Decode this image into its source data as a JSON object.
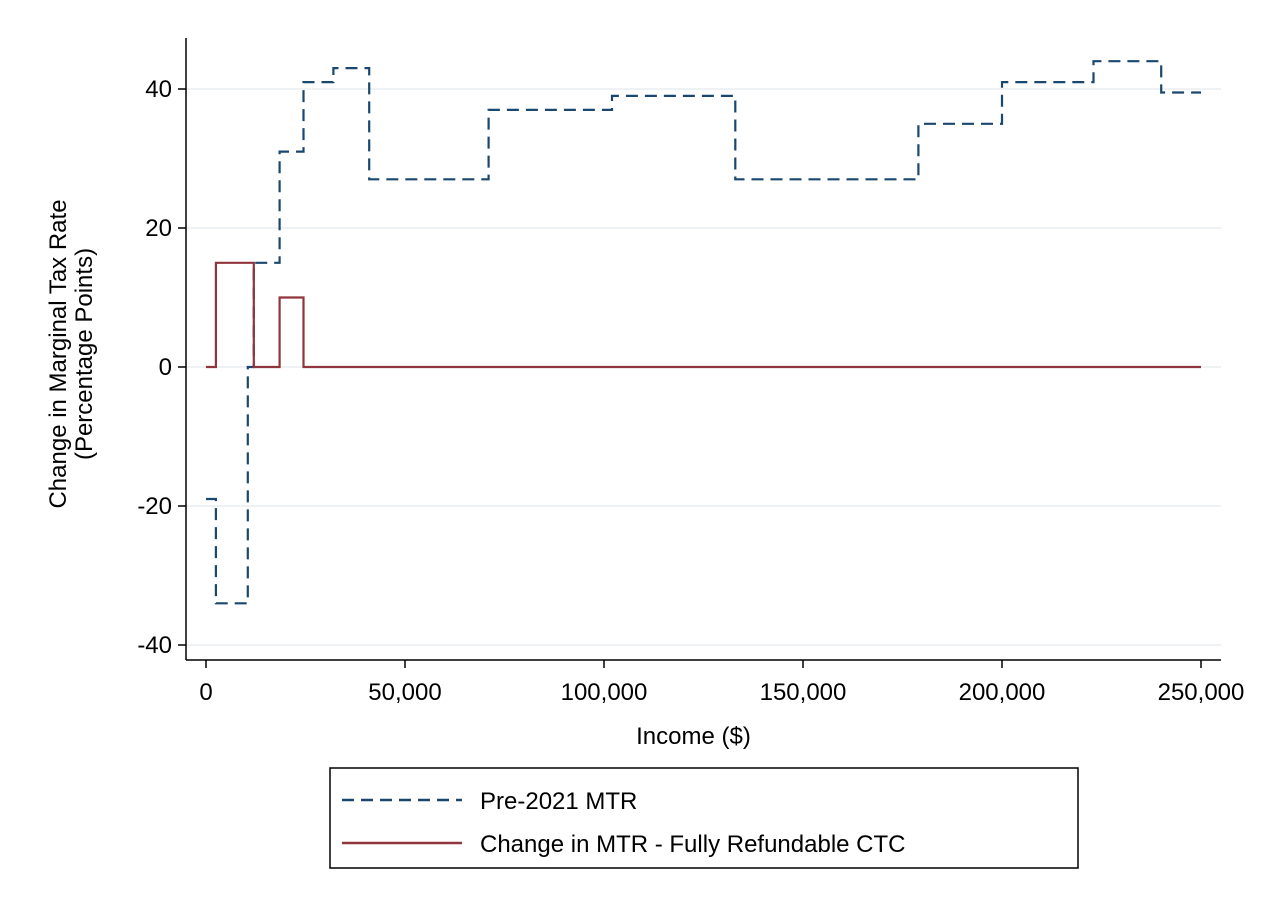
{
  "chart_data": {
    "type": "line",
    "title": "",
    "xlabel": "Income ($)",
    "ylabel_line1": "Change in Marginal Tax Rate",
    "ylabel_line2": "(Percentage Points)",
    "xlim": [
      0,
      250000
    ],
    "ylim": [
      -40,
      40
    ],
    "xticks": [
      0,
      50000,
      100000,
      150000,
      200000,
      250000
    ],
    "xtick_labels": [
      "0",
      "50,000",
      "100,000",
      "150,000",
      "200,000",
      "250,000"
    ],
    "yticks": [
      -40,
      -20,
      0,
      20,
      40
    ],
    "ytick_labels": [
      "-40",
      "-20",
      "0",
      "20",
      "40"
    ],
    "grid": true,
    "legend_position": "bottom",
    "series": [
      {
        "name": "Pre-2021 MTR",
        "color": "#1a476f",
        "dash": "dashed",
        "x": [
          0,
          2500,
          2500,
          10500,
          10500,
          12000,
          12000,
          18500,
          18500,
          24500,
          24500,
          32000,
          32000,
          41000,
          41000,
          71000,
          71000,
          102000,
          102000,
          133000,
          133000,
          179000,
          179000,
          200000,
          200000,
          223000,
          223000,
          240000,
          240000,
          250000
        ],
        "y": [
          -19,
          -19,
          -34,
          -34,
          0,
          0,
          15,
          15,
          31,
          31,
          41,
          41,
          43,
          43,
          27,
          27,
          37,
          37,
          39,
          39,
          27,
          27,
          35,
          35,
          41,
          41,
          44,
          44,
          39.5,
          39.5
        ]
      },
      {
        "name": "Change in MTR - Fully Refundable CTC",
        "color": "#90353b",
        "dash": "solid",
        "x": [
          0,
          2500,
          2500,
          12000,
          12000,
          18500,
          18500,
          24500,
          24500,
          250000
        ],
        "y": [
          0,
          0,
          15,
          15,
          0,
          0,
          10,
          10,
          0,
          0
        ]
      }
    ]
  }
}
